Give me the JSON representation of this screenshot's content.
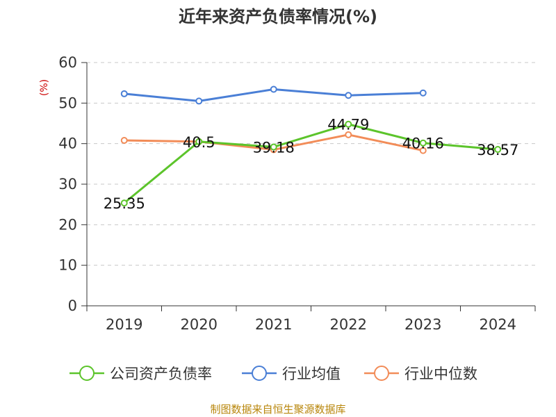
{
  "chart_data": {
    "type": "line",
    "title": "近年来资产负债率情况(%)",
    "ylabel": "(%)",
    "xlabel": "",
    "categories": [
      "2019",
      "2020",
      "2021",
      "2022",
      "2023",
      "2024"
    ],
    "ylim": [
      0,
      60
    ],
    "yticks": [
      0,
      10,
      20,
      30,
      40,
      50,
      60
    ],
    "grid": true,
    "legend_position": "bottom",
    "series": [
      {
        "name": "公司资产负债率",
        "color": "#5cc42b",
        "values": [
          25.35,
          40.5,
          39.18,
          44.79,
          40.16,
          38.57
        ],
        "labels": [
          "25.35",
          "40.5",
          "39.18",
          "44.79",
          "40.16",
          "38.57"
        ]
      },
      {
        "name": "行业均值",
        "color": "#4a7fd6",
        "values": [
          52.3,
          50.5,
          53.4,
          51.9,
          52.5,
          null
        ]
      },
      {
        "name": "行业中位数",
        "color": "#f28c58",
        "values": [
          40.8,
          40.5,
          38.5,
          42.2,
          38.3,
          null
        ]
      }
    ]
  },
  "source_text": "制图数据来自恒生聚源数据库"
}
